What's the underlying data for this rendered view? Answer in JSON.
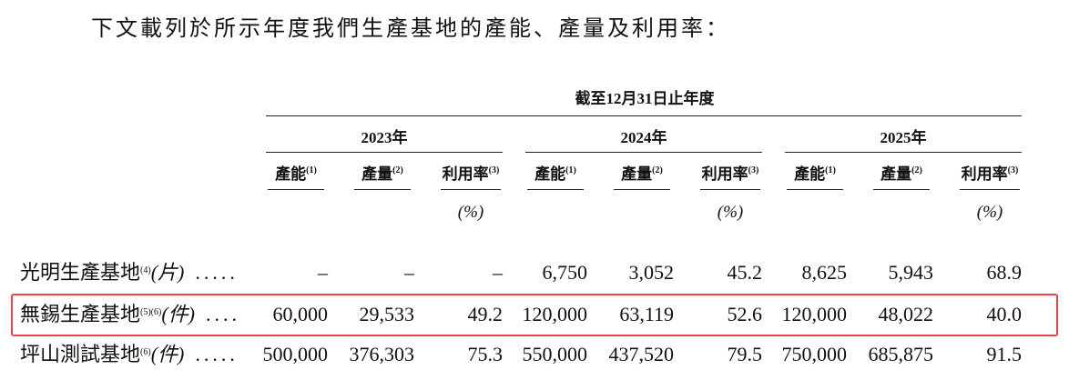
{
  "intro": "下文載列於所示年度我們生產基地的產能、產量及利用率：",
  "table": {
    "period": "截至12月31日止年度",
    "years": [
      "2023年",
      "2024年",
      "2025年"
    ],
    "columns": [
      {
        "label": "產能",
        "note": "(1)"
      },
      {
        "label": "產量",
        "note": "(2)"
      },
      {
        "label": "利用率",
        "note": "(3)",
        "unit": "(%)"
      }
    ],
    "rows": [
      {
        "name": "光明生產基地",
        "note": "(4)",
        "unit": "(片)",
        "leader": ".....",
        "cells": [
          "–",
          "–",
          "–",
          "6,750",
          "3,052",
          "45.2",
          "8,625",
          "5,943",
          "68.9"
        ]
      },
      {
        "name": "無錫生產基地",
        "note": "(5)(6)",
        "unit": "(件)",
        "leader": "....",
        "cells": [
          "60,000",
          "29,533",
          "49.2",
          "120,000",
          "63,119",
          "52.6",
          "120,000",
          "48,022",
          "40.0"
        ]
      },
      {
        "name": "坪山測試基地",
        "note": "(6)",
        "unit": "(件)",
        "leader": ".....",
        "cells": [
          "500,000",
          "376,303",
          "75.3",
          "550,000",
          "437,520",
          "79.5",
          "750,000",
          "685,875",
          "91.5"
        ]
      }
    ]
  }
}
